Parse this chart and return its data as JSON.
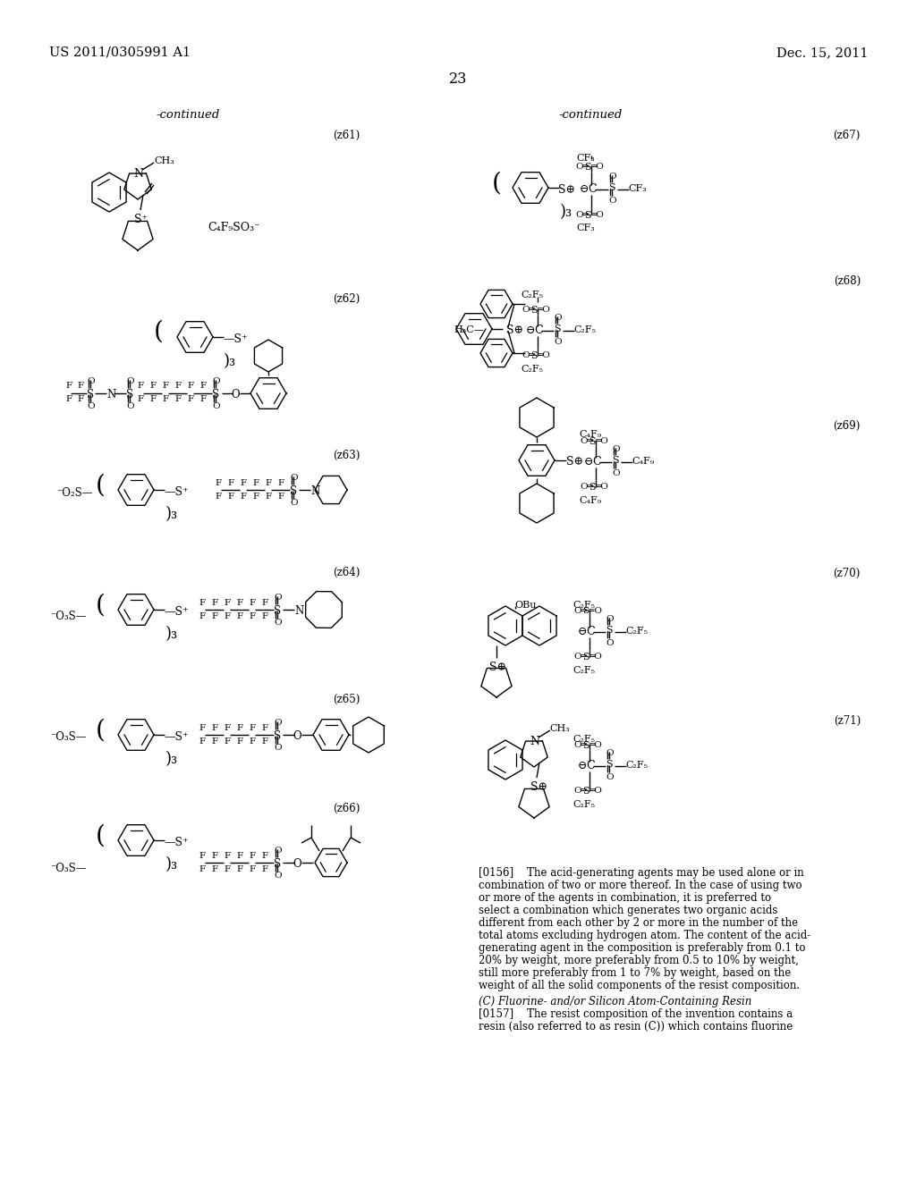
{
  "header_left": "US 2011/0305991 A1",
  "header_right": "Dec. 15, 2011",
  "page_number": "23",
  "continued_left": "-continued",
  "continued_right": "-continued",
  "bg": "#ffffff",
  "text_color": "#000000",
  "paragraph1": "[0156]    The acid-generating agents may be used alone or in combination of two or more thereof. In the case of using two or more of the agents in combination, it is preferred to select a combination which generates two organic acids different from each other by 2 or more in the number of the total atoms excluding hydrogen atom. The content of the acid-generating agent in the composition is preferably from 0.1 to 20% by weight, more preferably from 0.5 to 10% by weight, still more preferably from 1 to 7% by weight, based on the weight of all the solid components of the resist composition.",
  "section": "(C) Fluorine- and/or Silicon Atom-Containing Resin",
  "paragraph2": "[0157]    The resist composition of the invention contains a resin (also referred to as resin (C)) which contains fluorine"
}
